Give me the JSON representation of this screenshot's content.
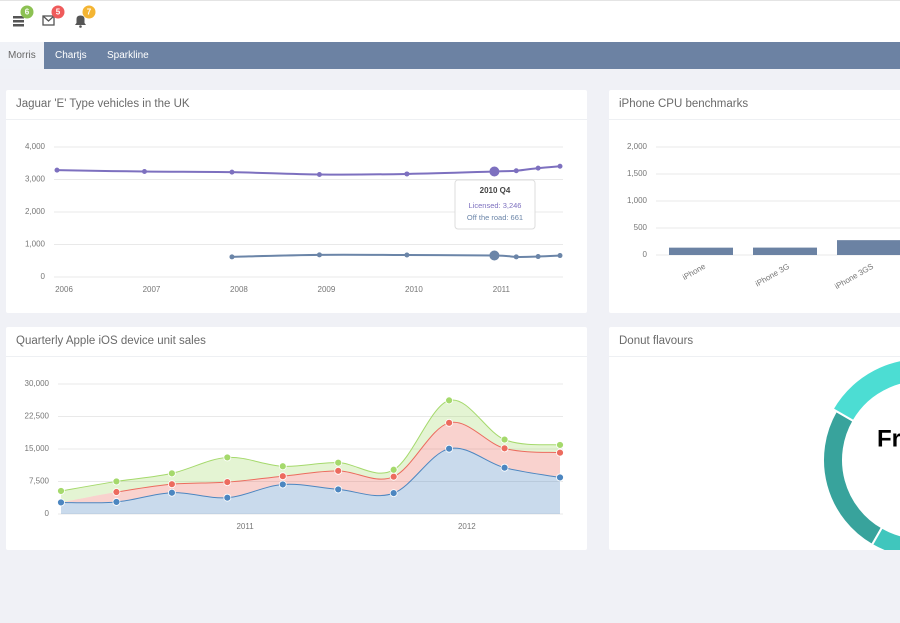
{
  "header": {
    "badges": [
      {
        "count": 6,
        "color": "#8cc152"
      },
      {
        "count": 5,
        "color": "#ef5b5b"
      },
      {
        "count": 7,
        "color": "#f4b533"
      }
    ]
  },
  "tabs": [
    "Morris",
    "Chartjs",
    "Sparkline"
  ],
  "active_tab": 0,
  "chart_data": [
    {
      "type": "line",
      "title": "Jaguar 'E' Type vehicles in the UK",
      "x": [
        "2005 Q4",
        "2006 Q4",
        "2007 Q4",
        "2008 Q4",
        "2009 Q4",
        "2010 Q4",
        "2011 Q1",
        "2011 Q2",
        "2011 Q3"
      ],
      "series": [
        {
          "name": "Licensed",
          "color": "#7d70bf",
          "values": [
            3289,
            3245,
            3226,
            3155,
            3171,
            3246,
            3269,
            3351,
            3407
          ]
        },
        {
          "name": "Off the road",
          "color": "#6b85a8",
          "values": [
            null,
            null,
            620,
            681,
            676,
            661,
            618,
            629,
            660
          ]
        }
      ],
      "xticks": [
        2006,
        2007,
        2008,
        2009,
        2010,
        2011
      ],
      "ylim": [
        0,
        4000
      ],
      "yticks": [
        0,
        {
          "value": 1000,
          "label": "1,000"
        },
        {
          "value": 2000,
          "label": "2,000"
        },
        {
          "value": 3000,
          "label": "3,000"
        },
        {
          "value": 4000,
          "label": "4,000"
        }
      ],
      "grid": true,
      "tooltip": {
        "index": 5,
        "lines": [
          "Licensed: 3,246",
          "Off the road: 661"
        ]
      }
    },
    {
      "type": "bar",
      "title": "iPhone CPU benchmarks",
      "categories": [
        "iPhone",
        "iPhone 3G",
        "iPhone 3GS"
      ],
      "values": [
        136,
        137,
        275
      ],
      "color": "#6b82a3",
      "ylim": [
        0,
        2000
      ],
      "yticks": [
        0,
        500,
        {
          "value": 1000,
          "label": "1,000"
        },
        {
          "value": 1500,
          "label": "1,500"
        },
        {
          "value": 2000,
          "label": "2,000"
        }
      ],
      "grid": true
    },
    {
      "type": "area",
      "title": "Quarterly Apple iOS device unit sales",
      "x": [
        "2010 Q1",
        "2010 Q2",
        "2010 Q3",
        "2010 Q4",
        "2011 Q1",
        "2011 Q2",
        "2011 Q3",
        "2011 Q4",
        "2012 Q1",
        "2012 Q2"
      ],
      "series": [
        {
          "color": "#4c86c0",
          "values": [
            2666,
            2778,
            4912,
            3767,
            6810,
            5670,
            4820,
            15073,
            10687,
            8432
          ]
        },
        {
          "color": "#ec6b5e",
          "values": [
            null,
            2294,
            1969,
            3597,
            1914,
            4293,
            3795,
            5967,
            4460,
            5713
          ]
        },
        {
          "color": "#a5d96c",
          "values": [
            2647,
            2441,
            2501,
            5689,
            2293,
            1881,
            1588,
            5175,
            2028,
            1791
          ]
        }
      ],
      "xticks": [
        2011,
        2012
      ],
      "ylim": [
        0,
        30000
      ],
      "yticks": [
        0,
        {
          "value": 7500,
          "label": "7,500"
        },
        {
          "value": 15000,
          "label": "15,000"
        },
        {
          "value": 22500,
          "label": "22,500"
        },
        {
          "value": 30000,
          "label": "30,000"
        }
      ],
      "grid": true
    },
    {
      "type": "donut",
      "title": "Donut flavours",
      "categories": [
        null,
        "Frosted",
        null,
        null
      ],
      "values": [
        25,
        40,
        25,
        10
      ],
      "colors": [
        "#38a39c",
        "#4cddd3",
        "#3ccfc5",
        "#40c6bd"
      ],
      "selected": 1
    }
  ]
}
